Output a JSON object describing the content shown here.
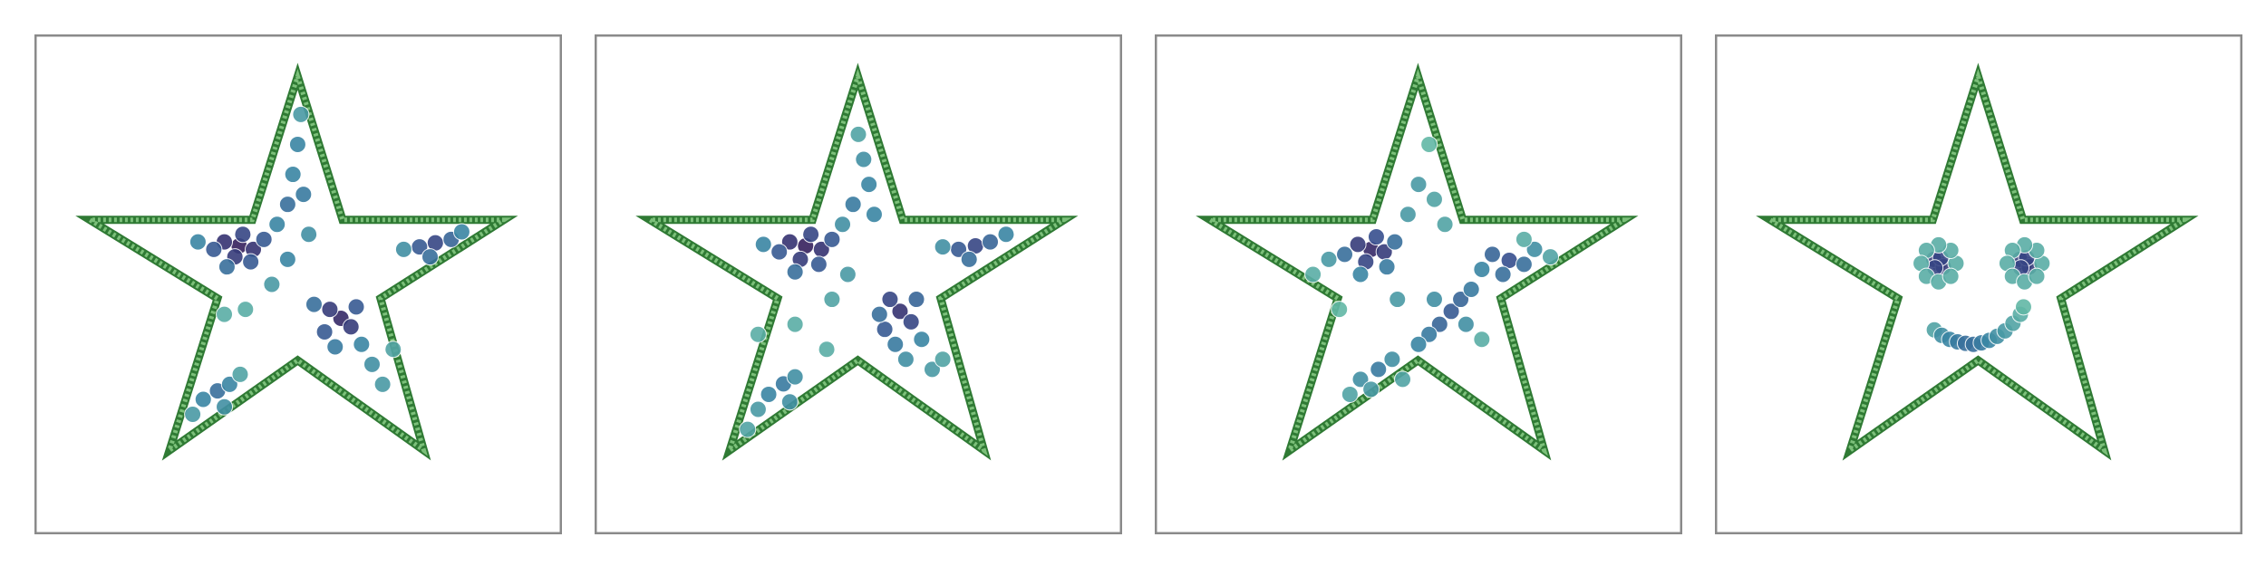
{
  "colormap": [
    "#a6dcaa",
    "#62b8a6",
    "#3a86a4",
    "#374f8f",
    "#36215e"
  ],
  "chart_data": [
    {
      "type": "scatter",
      "xlim": [
        0,
        100
      ],
      "ylim": [
        0,
        100
      ],
      "x": [
        38.8,
        36,
        41.5,
        38,
        39.5,
        34,
        43.5,
        31,
        36.5,
        41,
        58.1,
        56,
        60,
        55,
        61,
        57,
        62,
        53,
        64,
        66,
        76,
        73,
        79,
        75,
        70,
        81,
        34.7,
        32,
        37,
        30,
        36,
        39,
        49.9,
        50.5,
        49,
        51,
        48,
        46,
        45,
        40,
        48,
        52,
        68,
        36
      ],
      "y": [
        57.7,
        58.5,
        57,
        55.5,
        60,
        57,
        59,
        58.5,
        53.5,
        54.5,
        43.2,
        45,
        41.5,
        40.5,
        45.5,
        37.5,
        38,
        46,
        34,
        30,
        58.3,
        57.5,
        59,
        55.5,
        57,
        60.5,
        28.7,
        27,
        30,
        24,
        25.5,
        32,
        78,
        84,
        72,
        68,
        66,
        62,
        50,
        45,
        55,
        60,
        37,
        44
      ],
      "density": [
        1,
        0.9,
        0.9,
        0.85,
        0.8,
        0.7,
        0.7,
        0.5,
        0.6,
        0.7,
        0.95,
        0.85,
        0.85,
        0.7,
        0.7,
        0.55,
        0.5,
        0.6,
        0.45,
        0.4,
        0.8,
        0.7,
        0.65,
        0.6,
        0.45,
        0.5,
        0.6,
        0.5,
        0.5,
        0.4,
        0.45,
        0.35,
        0.5,
        0.4,
        0.5,
        0.55,
        0.6,
        0.5,
        0.4,
        0.3,
        0.5,
        0.45,
        0.35,
        0.3
      ]
    },
    {
      "type": "scatter",
      "xlim": [
        0,
        100
      ],
      "ylim": [
        0,
        100
      ],
      "x": [
        40,
        37,
        43,
        39,
        41,
        35,
        45,
        32,
        38,
        42.5,
        57.9,
        56,
        60,
        55,
        61,
        57,
        62,
        54,
        59,
        64,
        72.2,
        69,
        75,
        71,
        66,
        78,
        35.8,
        33,
        38,
        31,
        37,
        29,
        51,
        50,
        52,
        49,
        53,
        47,
        45,
        38,
        48,
        31,
        66,
        44
      ],
      "y": [
        57.7,
        58.5,
        57,
        55,
        60,
        56.5,
        59,
        58,
        52.5,
        54,
        44.6,
        47,
        42.5,
        41,
        47,
        38,
        39,
        44,
        35,
        33,
        57.7,
        57,
        58.5,
        55,
        57.5,
        60,
        30.1,
        28,
        31.5,
        25,
        26.5,
        21,
        75,
        80,
        70,
        66,
        64,
        62,
        47,
        42,
        52,
        40,
        35,
        37
      ],
      "density": [
        1,
        0.9,
        0.9,
        0.85,
        0.8,
        0.7,
        0.7,
        0.5,
        0.6,
        0.7,
        0.9,
        0.8,
        0.8,
        0.7,
        0.65,
        0.55,
        0.5,
        0.6,
        0.45,
        0.4,
        0.8,
        0.7,
        0.65,
        0.6,
        0.45,
        0.5,
        0.55,
        0.5,
        0.45,
        0.4,
        0.45,
        0.35,
        0.45,
        0.35,
        0.5,
        0.55,
        0.5,
        0.45,
        0.35,
        0.3,
        0.4,
        0.3,
        0.35,
        0.3
      ]
    },
    {
      "type": "scatter",
      "xlim": [
        0,
        100
      ],
      "ylim": [
        0,
        100
      ],
      "x": [
        41,
        38.5,
        43.5,
        40,
        42,
        36,
        45.5,
        33,
        39,
        44,
        67.2,
        64,
        70,
        66,
        72,
        62,
        75,
        56.2,
        54,
        58,
        52,
        60,
        50,
        59,
        53,
        42.4,
        39,
        45,
        37,
        47,
        41,
        50,
        53,
        48,
        55,
        52,
        30,
        46,
        62,
        35,
        70
      ],
      "y": [
        57,
        58,
        56.5,
        54.5,
        59.5,
        56,
        58.5,
        55,
        52,
        53.5,
        54.8,
        56,
        54,
        52,
        57,
        53,
        55.5,
        44.6,
        42,
        47,
        40,
        49,
        38,
        42,
        47,
        33,
        31,
        35,
        28,
        31,
        29,
        70,
        67,
        64,
        62,
        78,
        52,
        47,
        39,
        45,
        59
      ],
      "density": [
        0.95,
        0.85,
        0.85,
        0.8,
        0.75,
        0.6,
        0.6,
        0.4,
        0.5,
        0.55,
        0.75,
        0.65,
        0.6,
        0.6,
        0.45,
        0.5,
        0.35,
        0.7,
        0.65,
        0.65,
        0.55,
        0.55,
        0.5,
        0.45,
        0.45,
        0.55,
        0.45,
        0.45,
        0.35,
        0.35,
        0.4,
        0.4,
        0.35,
        0.4,
        0.35,
        0.25,
        0.3,
        0.4,
        0.3,
        0.25,
        0.3
      ]
    },
    {
      "type": "scatter",
      "xlim": [
        0,
        100
      ],
      "ylim": [
        0,
        100
      ],
      "x": [
        42.4,
        41.5,
        43.3,
        42.8,
        41.7,
        45.7,
        44.7,
        42.4,
        40.1,
        39.1,
        40.1,
        42.4,
        44.7,
        58.7,
        57.8,
        59.6,
        59.1,
        58,
        62,
        61,
        58.7,
        56.4,
        55.4,
        56.4,
        58.7,
        61,
        41.6,
        43,
        44.5,
        46,
        47.5,
        49,
        50.5,
        52,
        53.5,
        55,
        56.5,
        57.9,
        58.5
      ],
      "y": [
        54.2,
        55,
        53.5,
        55.3,
        53.3,
        54.2,
        56.8,
        57.9,
        56.8,
        54.2,
        51.6,
        50.5,
        51.6,
        54.2,
        55,
        53.5,
        55.3,
        53.3,
        54.2,
        56.8,
        57.9,
        56.8,
        54.2,
        51.6,
        50.5,
        51.6,
        40.9,
        39.8,
        39,
        38.5,
        38.2,
        38,
        38.3,
        38.8,
        39.6,
        40.7,
        42.2,
        44,
        45.5
      ],
      "density": [
        0.9,
        0.85,
        0.85,
        0.8,
        0.8,
        0.3,
        0.3,
        0.3,
        0.3,
        0.3,
        0.3,
        0.3,
        0.3,
        0.9,
        0.85,
        0.85,
        0.8,
        0.8,
        0.3,
        0.3,
        0.3,
        0.3,
        0.3,
        0.3,
        0.3,
        0.3,
        0.35,
        0.45,
        0.5,
        0.55,
        0.6,
        0.6,
        0.55,
        0.5,
        0.45,
        0.4,
        0.35,
        0.3,
        0.25
      ]
    }
  ]
}
